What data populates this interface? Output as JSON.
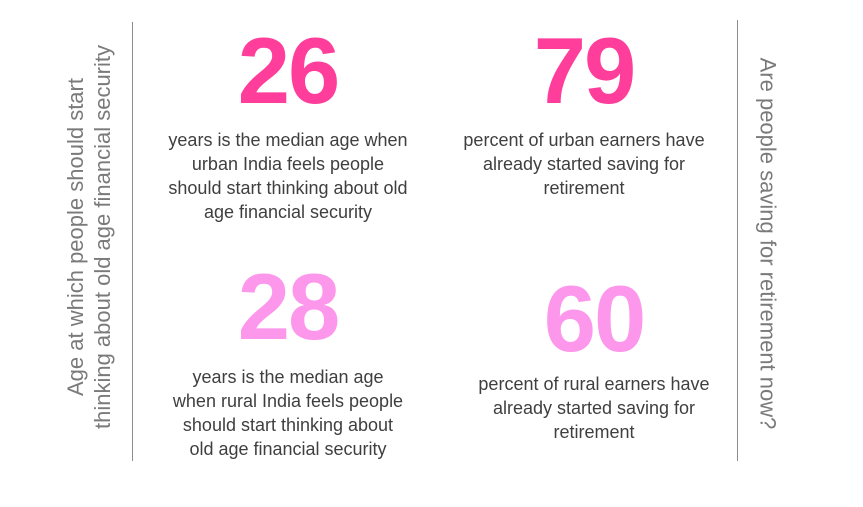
{
  "left_title": {
    "line1": "Age at which people should start",
    "line2": "thinking about old age financial security"
  },
  "right_title": "Are people saving for retirement now?",
  "stats": [
    {
      "value": "26",
      "description": [
        "years is the median age when",
        "urban India feels people",
        "should start thinking about old",
        "age financial security"
      ]
    },
    {
      "value": "79",
      "description": [
        "percent of urban earners have",
        "already started saving for",
        "retirement"
      ]
    },
    {
      "value": "28",
      "description": [
        "years is the median age",
        "when rural India feels people",
        "should start thinking about",
        "old age financial security"
      ]
    },
    {
      "value": "60",
      "description": [
        "percent of rural earners have",
        "already started saving for",
        "retirement"
      ]
    }
  ],
  "colors": {
    "urban_number": "#ff3e9b",
    "rural_number": "#fd97ec",
    "body_text": "#3f3f3f",
    "side_title": "#7a7a7a",
    "divider": "#8c8c8c"
  }
}
